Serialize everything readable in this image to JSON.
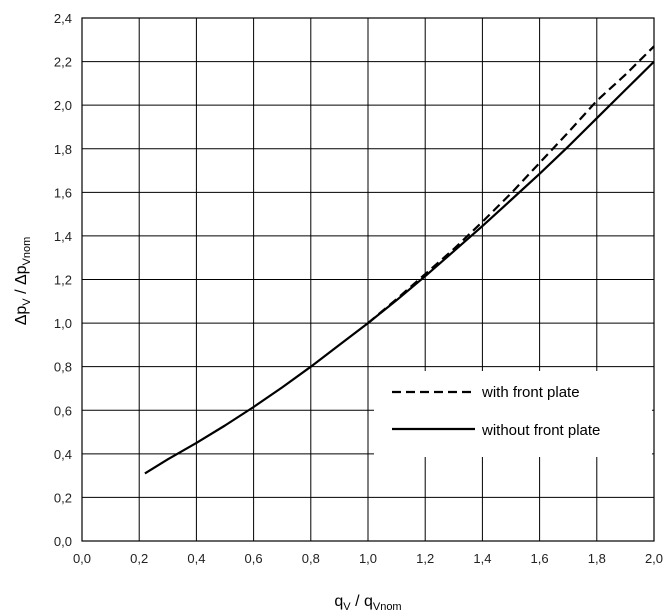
{
  "chart_data": {
    "type": "line",
    "title": "",
    "xlabel": {
      "main": "q",
      "sub1": "V",
      "mid": " / q",
      "sub2": "Vnom"
    },
    "ylabel": {
      "main": "Δp",
      "sub1": "V",
      "mid": " / Δp",
      "sub2": "Vnom"
    },
    "xlim": [
      0.0,
      2.0
    ],
    "ylim": [
      0.0,
      2.4
    ],
    "x_ticks": [
      "0,0",
      "0,2",
      "0,4",
      "0,6",
      "0,8",
      "1,0",
      "1,2",
      "1,4",
      "1,6",
      "1,8",
      "2,0"
    ],
    "y_ticks": [
      "0,0",
      "0,2",
      "0,4",
      "0,6",
      "0,8",
      "1,0",
      "1,2",
      "1,4",
      "1,6",
      "1,8",
      "2,0",
      "2,2",
      "2,4"
    ],
    "grid": true,
    "legend_position": "bottom-right",
    "series": [
      {
        "name": "with front plate",
        "style": "dashed",
        "color": "#000000",
        "x": [
          1.0,
          1.1,
          1.2,
          1.3,
          1.4,
          1.5,
          1.6,
          1.7,
          1.8,
          1.9,
          2.0
        ],
        "y": [
          1.0,
          1.11,
          1.225,
          1.34,
          1.465,
          1.595,
          1.735,
          1.875,
          2.02,
          2.14,
          2.27
        ]
      },
      {
        "name": "without front plate",
        "style": "solid",
        "color": "#000000",
        "x": [
          0.22,
          0.3,
          0.4,
          0.5,
          0.6,
          0.7,
          0.8,
          0.9,
          1.0,
          1.1,
          1.2,
          1.3,
          1.4,
          1.5,
          1.6,
          1.7,
          1.8,
          1.9,
          2.0
        ],
        "y": [
          0.31,
          0.375,
          0.45,
          0.53,
          0.615,
          0.705,
          0.8,
          0.9,
          1.0,
          1.105,
          1.215,
          1.33,
          1.445,
          1.565,
          1.685,
          1.81,
          1.94,
          2.07,
          2.2
        ]
      }
    ]
  }
}
